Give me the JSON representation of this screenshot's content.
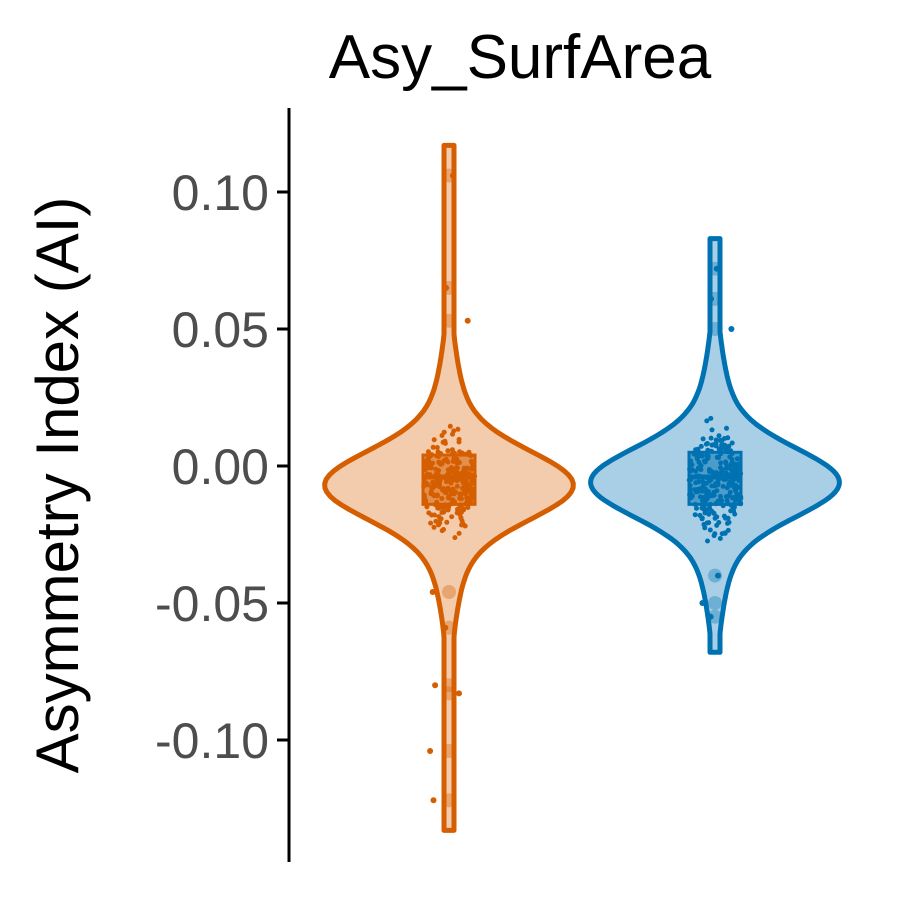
{
  "chart_data": {
    "type": "violin",
    "title": "Asy_SurfArea",
    "xlabel": "",
    "ylabel": "Asymmetry Index (AI)",
    "ylim": [
      -0.138,
      0.13
    ],
    "yticks": [
      0.1,
      0.05,
      0.0,
      -0.05,
      -0.1
    ],
    "ytick_labels": [
      "0.10",
      "0.05",
      "0.00",
      "-0.05",
      "-0.10"
    ],
    "grid": false,
    "legend": "none",
    "groups": [
      {
        "color": "#D55E00",
        "fill": "#F3CBAD",
        "min": -0.133,
        "max": 0.117,
        "median": -0.004,
        "q1": -0.014,
        "q3": 0.004,
        "mode": -0.007,
        "outliers": [
          0.106,
          0.065,
          0.053,
          -0.046,
          -0.059,
          -0.08,
          -0.083,
          -0.104,
          -0.122
        ]
      },
      {
        "color": "#0072B2",
        "fill": "#A9CFE6",
        "min": -0.068,
        "max": 0.083,
        "median": -0.004,
        "q1": -0.014,
        "q3": 0.005,
        "mode": -0.006,
        "outliers": [
          0.072,
          0.061,
          0.05,
          -0.04,
          -0.05,
          -0.055
        ]
      }
    ]
  }
}
